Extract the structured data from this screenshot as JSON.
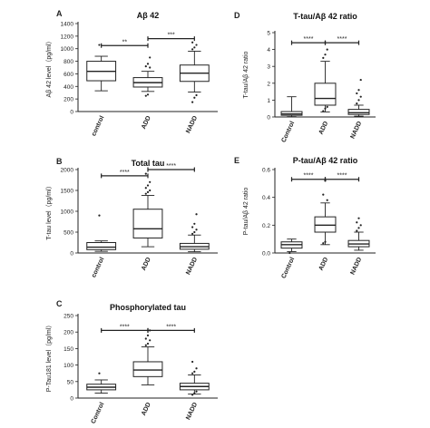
{
  "chart_data": [
    {
      "type": "box",
      "panel_letter": "A",
      "title": "Aβ 42",
      "ylabel": "Aβ 42 level（pg/ml）",
      "ylim": [
        0,
        1400
      ],
      "yticks": [
        "0",
        "200",
        "400",
        "600",
        "800",
        "1000",
        "1200",
        "1400"
      ],
      "categories": [
        "control",
        "ADD",
        "NADD"
      ],
      "boxes": [
        {
          "whisker_low": 330,
          "q1": 490,
          "median": 640,
          "q3": 800,
          "whisker_high": 880,
          "outliers": [
            1060
          ]
        },
        {
          "whisker_low": 320,
          "q1": 390,
          "median": 460,
          "q3": 540,
          "whisker_high": 640,
          "outliers": [
            250,
            270,
            700,
            720,
            760,
            860
          ]
        },
        {
          "whisker_low": 310,
          "q1": 480,
          "median": 610,
          "q3": 740,
          "whisker_high": 960,
          "outliers": [
            150,
            220,
            260,
            990,
            1020,
            1060,
            1100
          ]
        }
      ],
      "significance": [
        {
          "from": 0,
          "to": 1,
          "label": "**",
          "y": 1050
        },
        {
          "from": 1,
          "to": 2,
          "label": "***",
          "y": 1160
        }
      ]
    },
    {
      "type": "box",
      "panel_letter": "B",
      "title": "Total tau",
      "ylabel": "T-tau level（pg/ml）",
      "ylim": [
        0,
        2000
      ],
      "yticks": [
        "0",
        "500",
        "1000",
        "1500",
        "2000"
      ],
      "categories": [
        "control",
        "ADD",
        "NADD"
      ],
      "boxes": [
        {
          "whisker_low": 40,
          "q1": 80,
          "median": 140,
          "q3": 250,
          "whisker_high": 290,
          "outliers": [
            900
          ]
        },
        {
          "whisker_low": 150,
          "q1": 360,
          "median": 580,
          "q3": 1050,
          "whisker_high": 1380,
          "outliers": [
            1420,
            1460,
            1500,
            1560,
            1620,
            1700,
            1900
          ]
        },
        {
          "whisker_low": 30,
          "q1": 90,
          "median": 150,
          "q3": 230,
          "whisker_high": 430,
          "outliers": [
            460,
            500,
            560,
            620,
            700,
            930
          ]
        }
      ],
      "significance": [
        {
          "from": 0,
          "to": 1,
          "label": "****",
          "y": 1850
        },
        {
          "from": 1,
          "to": 2,
          "label": "****",
          "y": 2000
        }
      ]
    },
    {
      "type": "box",
      "panel_letter": "C",
      "title": "Phosphorylated tau",
      "ylabel": "P-Tau181 level（pg/ml）",
      "ylim": [
        0,
        250
      ],
      "yticks": [
        "0",
        "50",
        "100",
        "150",
        "200",
        "250"
      ],
      "categories": [
        "Control",
        "ADD",
        "NADD"
      ],
      "boxes": [
        {
          "whisker_low": 15,
          "q1": 25,
          "median": 33,
          "q3": 42,
          "whisker_high": 55,
          "outliers": [
            75
          ]
        },
        {
          "whisker_low": 40,
          "q1": 65,
          "median": 85,
          "q3": 110,
          "whisker_high": 155,
          "outliers": [
            160,
            165,
            175,
            180,
            190,
            205
          ]
        },
        {
          "whisker_low": 12,
          "q1": 25,
          "median": 35,
          "q3": 45,
          "whisker_high": 70,
          "outliers": [
            10,
            15,
            20,
            75,
            80,
            90,
            110
          ]
        }
      ],
      "significance": [
        {
          "from": 0,
          "to": 1,
          "label": "****",
          "y": 205
        },
        {
          "from": 1,
          "to": 2,
          "label": "****",
          "y": 205
        }
      ]
    },
    {
      "type": "box",
      "panel_letter": "D",
      "title": "T-tau/Aβ 42 ratio",
      "ylabel": "T-tau/Aβ 42 ratio",
      "ylim": [
        0,
        5
      ],
      "yticks": [
        "0",
        "1",
        "2",
        "3",
        "4",
        "5"
      ],
      "categories": [
        "Control",
        "ADD",
        "NADD"
      ],
      "boxes": [
        {
          "whisker_low": 0.02,
          "q1": 0.1,
          "median": 0.18,
          "q3": 0.32,
          "whisker_high": 1.2,
          "outliers": []
        },
        {
          "whisker_low": 0.3,
          "q1": 0.7,
          "median": 1.1,
          "q3": 2.0,
          "whisker_high": 3.3,
          "outliers": [
            0.35,
            0.5,
            0.6,
            3.5,
            3.7,
            4.0
          ]
        },
        {
          "whisker_low": 0.05,
          "q1": 0.15,
          "median": 0.25,
          "q3": 0.45,
          "whisker_high": 0.7,
          "outliers": [
            0.8,
            1.0,
            1.2,
            1.4,
            1.6,
            2.2
          ]
        }
      ],
      "significance": [
        {
          "from": 0,
          "to": 1,
          "label": "****",
          "y": 4.4
        },
        {
          "from": 1,
          "to": 2,
          "label": "****",
          "y": 4.4
        }
      ]
    },
    {
      "type": "box",
      "panel_letter": "E",
      "title": "P-tau/Aβ 42 ratio",
      "ylabel": "P-tau/Aβ 42 ratio",
      "ylim": [
        0,
        0.6
      ],
      "yticks": [
        "0.0",
        "0.2",
        "0.4",
        "0.6"
      ],
      "categories": [
        "Control",
        "ADD",
        "NADD"
      ],
      "boxes": [
        {
          "whisker_low": 0.01,
          "q1": 0.035,
          "median": 0.06,
          "q3": 0.08,
          "whisker_high": 0.1,
          "outliers": [
            0.0
          ]
        },
        {
          "whisker_low": 0.06,
          "q1": 0.15,
          "median": 0.2,
          "q3": 0.26,
          "whisker_high": 0.36,
          "outliers": [
            0.07,
            0.08,
            0.38,
            0.42,
            0.52
          ]
        },
        {
          "whisker_low": 0.02,
          "q1": 0.045,
          "median": 0.065,
          "q3": 0.09,
          "whisker_high": 0.15,
          "outliers": [
            0.16,
            0.18,
            0.2,
            0.22,
            0.25
          ]
        }
      ],
      "significance": [
        {
          "from": 0,
          "to": 1,
          "label": "****",
          "y": 0.53
        },
        {
          "from": 1,
          "to": 2,
          "label": "****",
          "y": 0.53
        }
      ]
    }
  ]
}
